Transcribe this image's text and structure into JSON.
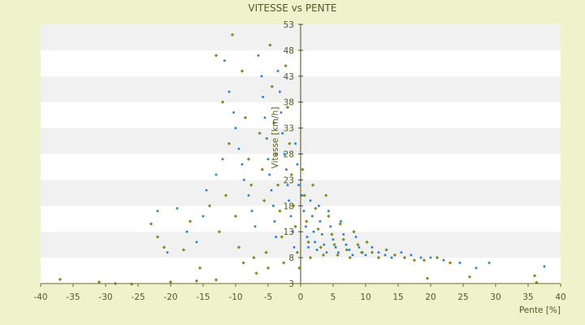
{
  "chart_data": {
    "type": "scatter",
    "title": "VITESSE vs PENTE",
    "xlabel": "Pente [%]",
    "ylabel": "Vitesse [km/h]",
    "xlim": [
      -40,
      40
    ],
    "ylim": [
      3,
      53
    ],
    "x_ticks": [
      -40,
      -35,
      -30,
      -25,
      -20,
      -15,
      -10,
      -5,
      0,
      5,
      10,
      15,
      20,
      25,
      30,
      35,
      40
    ],
    "y_ticks": [
      3,
      8,
      13,
      18,
      23,
      28,
      33,
      38,
      43,
      48,
      53
    ],
    "grid": "horizontal alternating bands",
    "legend": "none",
    "colors": {
      "series_a": "#1f7fd6",
      "series_b": "#8a9a10"
    },
    "series": [
      {
        "values": [
          [
            -11.7,
            46.0
          ],
          [
            -11.0,
            40.0
          ],
          [
            -10.3,
            36.0
          ],
          [
            -10.0,
            33.0
          ],
          [
            -9.5,
            29.0
          ],
          [
            -9.0,
            26.0
          ],
          [
            -8.7,
            23.0
          ],
          [
            -8.0,
            20.0
          ],
          [
            -7.5,
            17.0
          ],
          [
            -7.0,
            14.0
          ],
          [
            -6.5,
            47.0
          ],
          [
            -6.0,
            43.0
          ],
          [
            -5.8,
            39.0
          ],
          [
            -5.5,
            35.0
          ],
          [
            -5.2,
            31.0
          ],
          [
            -5.0,
            27.0
          ],
          [
            -4.8,
            24.0
          ],
          [
            -4.5,
            21.0
          ],
          [
            -4.2,
            18.0
          ],
          [
            -4.0,
            15.0
          ],
          [
            -3.8,
            12.0
          ],
          [
            -3.5,
            44.0
          ],
          [
            -3.2,
            40.0
          ],
          [
            -3.0,
            36.0
          ],
          [
            -2.8,
            32.0
          ],
          [
            -2.5,
            28.0
          ],
          [
            -2.2,
            25.0
          ],
          [
            -2.0,
            22.0
          ],
          [
            -1.8,
            19.0
          ],
          [
            -1.5,
            16.0
          ],
          [
            -1.2,
            13.0
          ],
          [
            -1.0,
            10.0
          ],
          [
            -0.8,
            30.0
          ],
          [
            -0.5,
            26.0
          ],
          [
            -0.3,
            22.0
          ],
          [
            0.2,
            20.0
          ],
          [
            0.5,
            17.0
          ],
          [
            0.8,
            14.0
          ],
          [
            1.0,
            12.0
          ],
          [
            1.2,
            10.0
          ],
          [
            1.5,
            19.0
          ],
          [
            1.8,
            16.0
          ],
          [
            2.0,
            13.0
          ],
          [
            2.2,
            11.0
          ],
          [
            2.5,
            9.5
          ],
          [
            2.8,
            18.0
          ],
          [
            3.0,
            15.0
          ],
          [
            3.3,
            12.5
          ],
          [
            3.6,
            10.5
          ],
          [
            4.0,
            9.0
          ],
          [
            4.3,
            17.0
          ],
          [
            4.6,
            14.0
          ],
          [
            5.0,
            11.5
          ],
          [
            5.4,
            10.0
          ],
          [
            5.8,
            9.0
          ],
          [
            6.2,
            15.0
          ],
          [
            6.6,
            12.5
          ],
          [
            7.0,
            10.5
          ],
          [
            7.5,
            9.5
          ],
          [
            8.0,
            8.5
          ],
          [
            8.5,
            12.0
          ],
          [
            9.0,
            10.0
          ],
          [
            9.5,
            9.0
          ],
          [
            10.0,
            8.5
          ],
          [
            11.0,
            10.0
          ],
          [
            12.0,
            9.0
          ],
          [
            13.0,
            8.5
          ],
          [
            14.0,
            8.0
          ],
          [
            15.5,
            9.0
          ],
          [
            17.0,
            8.5
          ],
          [
            18.5,
            8.0
          ],
          [
            20.0,
            8.0
          ],
          [
            22.0,
            7.5
          ],
          [
            24.5,
            7.0
          ],
          [
            27.0,
            6.0
          ],
          [
            29.0,
            7.0
          ],
          [
            37.5,
            6.3
          ],
          [
            -22.0,
            17.0
          ],
          [
            -16.0,
            11.0
          ],
          [
            -14.5,
            21.0
          ],
          [
            -13.0,
            24.0
          ],
          [
            -12.0,
            27.0
          ],
          [
            -15.0,
            16.0
          ],
          [
            -17.5,
            13.0
          ],
          [
            -19.0,
            17.5
          ],
          [
            -20.5,
            9.0
          ]
        ]
      },
      {
        "values": [
          [
            -37.0,
            3.8
          ],
          [
            -31.0,
            3.3
          ],
          [
            -28.5,
            3.0
          ],
          [
            -26.0,
            2.9
          ],
          [
            -20.0,
            3.3
          ],
          [
            -16.0,
            3.5
          ],
          [
            -13.0,
            3.7
          ],
          [
            -10.5,
            51.0
          ],
          [
            -13.0,
            47.0
          ],
          [
            -12.0,
            38.0
          ],
          [
            -11.0,
            30.0
          ],
          [
            -9.0,
            44.0
          ],
          [
            -8.5,
            35.0
          ],
          [
            -8.0,
            27.0
          ],
          [
            -7.6,
            22.0
          ],
          [
            -7.2,
            8.0
          ],
          [
            -6.8,
            5.0
          ],
          [
            -6.3,
            32.0
          ],
          [
            -5.9,
            25.0
          ],
          [
            -5.6,
            19.0
          ],
          [
            -5.3,
            9.0
          ],
          [
            -5.0,
            6.0
          ],
          [
            -4.7,
            49.0
          ],
          [
            -4.4,
            41.0
          ],
          [
            -4.1,
            34.0
          ],
          [
            -3.8,
            28.0
          ],
          [
            -3.5,
            22.0
          ],
          [
            -3.2,
            17.0
          ],
          [
            -2.9,
            12.0
          ],
          [
            -2.6,
            7.0
          ],
          [
            -2.3,
            45.0
          ],
          [
            -2.0,
            37.0
          ],
          [
            -1.7,
            30.0
          ],
          [
            -1.4,
            24.0
          ],
          [
            -1.1,
            18.0
          ],
          [
            -0.8,
            14.0
          ],
          [
            -0.5,
            9.0
          ],
          [
            -0.2,
            6.0
          ],
          [
            0.3,
            25.0
          ],
          [
            0.6,
            20.0
          ],
          [
            0.9,
            15.0
          ],
          [
            1.2,
            11.0
          ],
          [
            1.5,
            8.0
          ],
          [
            1.9,
            22.0
          ],
          [
            2.3,
            17.5
          ],
          [
            2.7,
            13.5
          ],
          [
            3.1,
            10.0
          ],
          [
            3.5,
            8.5
          ],
          [
            3.9,
            20.0
          ],
          [
            4.3,
            16.0
          ],
          [
            4.8,
            12.5
          ],
          [
            5.2,
            10.5
          ],
          [
            5.7,
            8.5
          ],
          [
            6.1,
            14.5
          ],
          [
            6.6,
            11.5
          ],
          [
            7.1,
            9.5
          ],
          [
            7.6,
            8.0
          ],
          [
            8.2,
            13.0
          ],
          [
            8.8,
            10.5
          ],
          [
            9.4,
            9.0
          ],
          [
            10.2,
            11.0
          ],
          [
            11.0,
            9.0
          ],
          [
            12.0,
            8.0
          ],
          [
            13.2,
            9.5
          ],
          [
            14.5,
            8.5
          ],
          [
            16.0,
            8.0
          ],
          [
            17.5,
            7.5
          ],
          [
            19.0,
            7.5
          ],
          [
            19.5,
            4.0
          ],
          [
            21.0,
            8.0
          ],
          [
            23.0,
            7.0
          ],
          [
            26.0,
            4.3
          ],
          [
            36.0,
            4.5
          ],
          [
            36.3,
            3.2
          ],
          [
            -23.0,
            14.5
          ],
          [
            -22.0,
            12.0
          ],
          [
            -21.0,
            10.0
          ],
          [
            -18.0,
            9.5
          ],
          [
            -17.0,
            15.0
          ],
          [
            -15.5,
            6.0
          ],
          [
            -14.0,
            18.0
          ],
          [
            -12.5,
            13.0
          ],
          [
            -11.5,
            20.0
          ],
          [
            -10.0,
            16.0
          ],
          [
            -9.5,
            10.0
          ],
          [
            -8.8,
            7.0
          ]
        ]
      }
    ]
  }
}
